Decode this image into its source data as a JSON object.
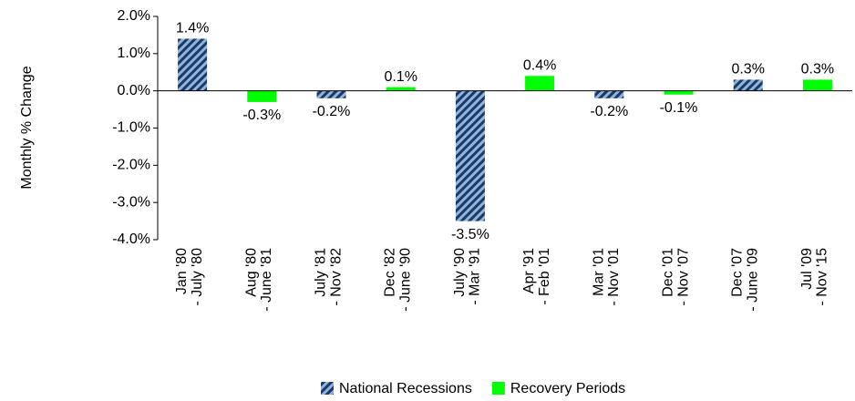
{
  "chart_data": {
    "type": "bar",
    "y_label": "Monthly % Change",
    "categories": [
      "Jan '80 - July '80",
      "Aug '80 - June '81",
      "July '81 - Nov '82",
      "Dec '82 - June '90",
      "July '90 - Mar '91",
      "Apr '91 - Feb '01",
      "Mar '01 - Nov '01",
      "Dec '01 - Nov '07",
      "Dec '07 - June '09",
      "Jul '09 - Nov '15"
    ],
    "series": [
      {
        "name": "National Recessions",
        "color": "#8eb4e3",
        "values": [
          1.4,
          null,
          -0.2,
          null,
          -3.5,
          null,
          -0.2,
          null,
          0.3,
          null
        ],
        "value_labels": [
          "1.4%",
          null,
          "-0.2%",
          null,
          "-3.5%",
          null,
          "-0.2%",
          null,
          "0.3%",
          null
        ]
      },
      {
        "name": "Recovery Periods",
        "color": "#00ff00",
        "values": [
          null,
          -0.3,
          null,
          0.1,
          null,
          0.4,
          null,
          -0.1,
          null,
          0.3
        ],
        "value_labels": [
          null,
          "-0.3%",
          null,
          "0.1%",
          null,
          "0.4%",
          null,
          "-0.1%",
          null,
          "0.3%"
        ]
      }
    ],
    "ylim": [
      -4,
      2
    ],
    "yticks": [
      {
        "value": -4,
        "label": "-4.0%"
      },
      {
        "value": -3,
        "label": "-3.0%"
      },
      {
        "value": -2,
        "label": "-2.0%"
      },
      {
        "value": -1,
        "label": "-1.0%"
      },
      {
        "value": 0,
        "label": "0.0%"
      },
      {
        "value": 1,
        "label": "1.0%"
      },
      {
        "value": 2,
        "label": "2.0%"
      }
    ],
    "legend": "bottom"
  }
}
